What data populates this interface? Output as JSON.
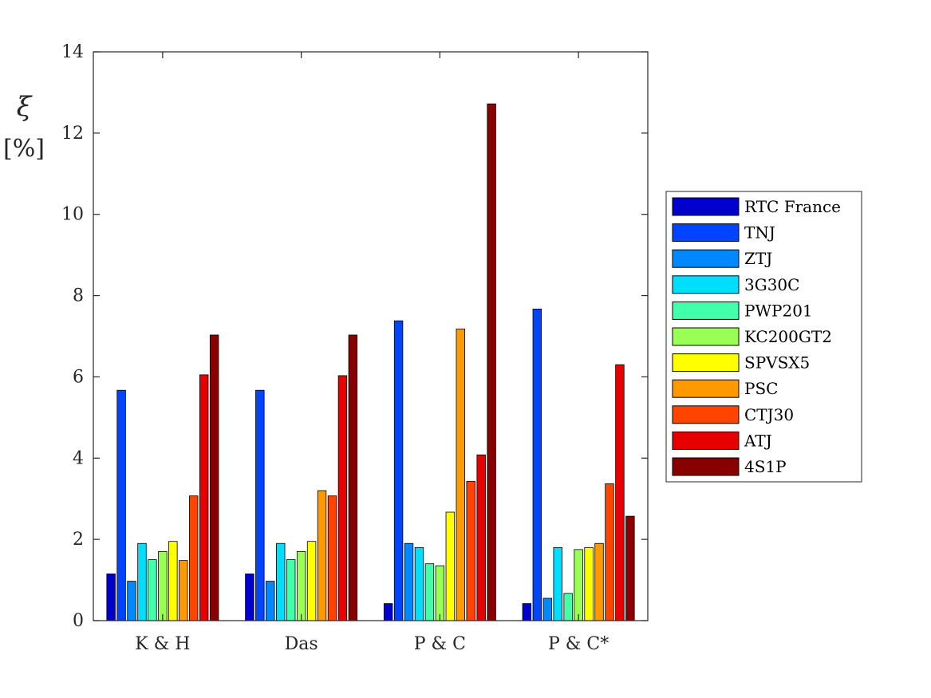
{
  "chart_data": {
    "type": "bar",
    "title": "",
    "xlabel": "",
    "ylabel": "ξ",
    "ylabel_unit": "[%]",
    "ylim": [
      0,
      14
    ],
    "yticks": [
      0,
      2,
      4,
      6,
      8,
      10,
      12,
      14
    ],
    "grid": false,
    "legend_position": "right",
    "categories": [
      "K & H",
      "Das",
      "P & C",
      "P & C*"
    ],
    "series": [
      {
        "name": "RTC France",
        "color": "#0000CC",
        "values": [
          1.15,
          1.15,
          0.42,
          0.42
        ]
      },
      {
        "name": "TNJ",
        "color": "#0044FF",
        "values": [
          5.67,
          5.67,
          7.38,
          7.67
        ]
      },
      {
        "name": "ZTJ",
        "color": "#0088FF",
        "values": [
          0.97,
          0.97,
          1.9,
          0.55
        ]
      },
      {
        "name": "3G30C",
        "color": "#00DDFF",
        "values": [
          1.9,
          1.9,
          1.8,
          1.8
        ]
      },
      {
        "name": "PWP201",
        "color": "#44FFAA",
        "values": [
          1.5,
          1.5,
          1.4,
          0.67
        ]
      },
      {
        "name": "KC200GT2",
        "color": "#99FF55",
        "values": [
          1.7,
          1.7,
          1.35,
          1.75
        ]
      },
      {
        "name": "SPVSX5",
        "color": "#FFFF00",
        "values": [
          1.95,
          1.95,
          2.67,
          1.8
        ]
      },
      {
        "name": "PSC",
        "color": "#FF9900",
        "values": [
          1.48,
          3.2,
          7.18,
          1.9
        ]
      },
      {
        "name": "CTJ30",
        "color": "#FF4400",
        "values": [
          3.07,
          3.07,
          3.43,
          3.37
        ]
      },
      {
        "name": "ATJ",
        "color": "#E60000",
        "values": [
          6.05,
          6.03,
          4.08,
          6.3
        ]
      },
      {
        "name": "4S1P",
        "color": "#880000",
        "values": [
          7.03,
          7.03,
          12.72,
          2.57
        ]
      }
    ]
  }
}
